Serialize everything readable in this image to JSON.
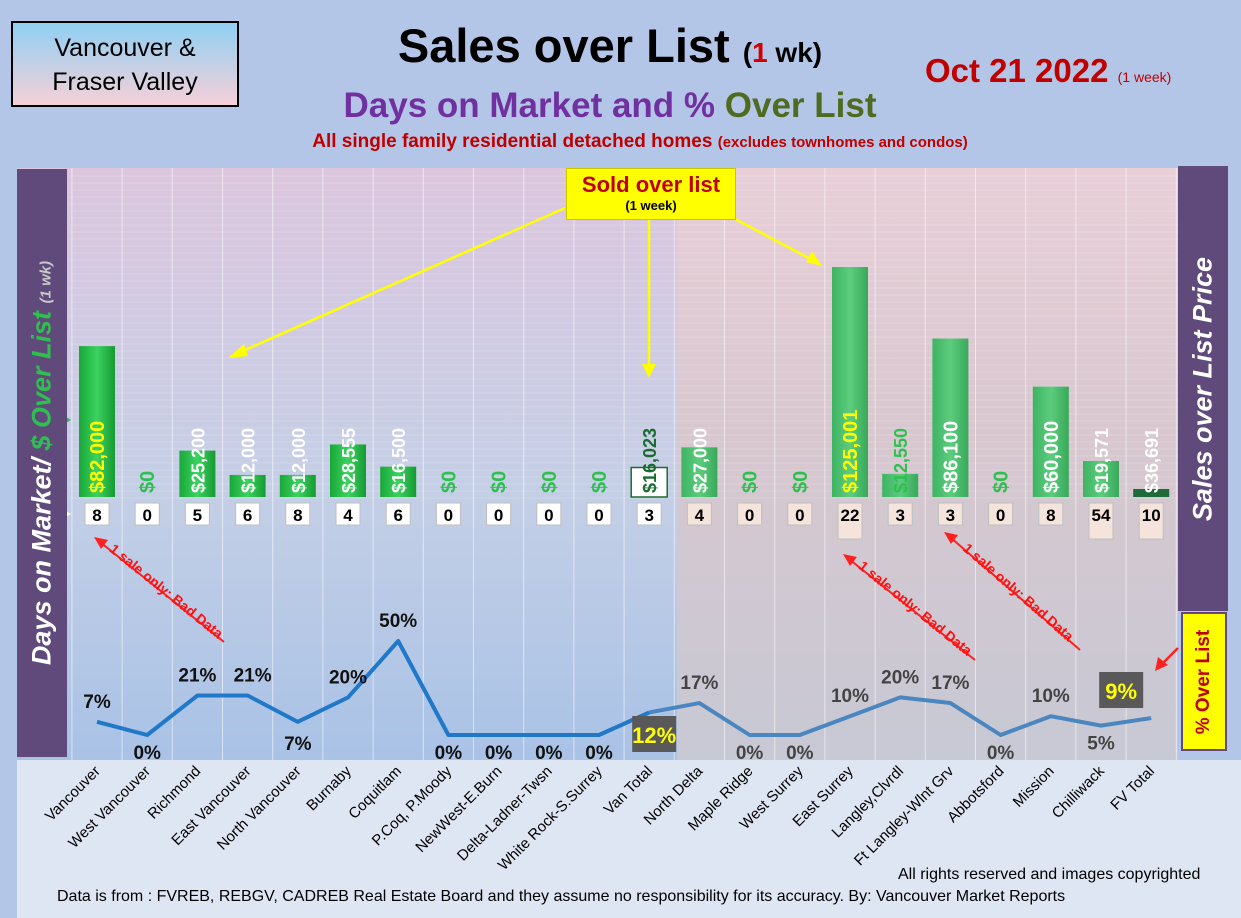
{
  "region": {
    "line1": "Vancouver &",
    "line2": "Fraser Valley"
  },
  "title": {
    "main": "Sales over List",
    "paren_open": "(",
    "weeks": "1",
    "unit": "wk)"
  },
  "date": {
    "main": "Oct 21  2022",
    "note": "(1 week)"
  },
  "subtitle": {
    "part1": "Days on Market and % ",
    "part2": "Over List"
  },
  "description": {
    "main": "All single family residential detached homes ",
    "note": "(excludes townhomes and condos)"
  },
  "left_axis": {
    "part1": "Days on Market/ ",
    "part2": "$ Over List",
    "part3": "(1 wk)"
  },
  "right_axis": {
    "label": "Sales over List Price"
  },
  "pct_box": {
    "label": "% Over List"
  },
  "callout": {
    "title": "Sold over list",
    "note": "(1 week)"
  },
  "annotations": {
    "bad_data": "1 sale only: Bad Data"
  },
  "footer": {
    "rights": "All rights reserved and  images copyrighted",
    "data": "Data is from : FVREB, REBGV, CADREB Real Estate Board and they assume no responsibility for its accuracy. By: Vancouver Market Reports"
  },
  "colors": {
    "bar": "#2fbf4f",
    "line_van": "#1f78c8",
    "line_fv": "#4a86c0",
    "title_red": "#c00000",
    "purple": "#604a7b"
  },
  "chart_data": {
    "type": "bar",
    "categories": [
      "Vancouver",
      "West Vancouver",
      "Richmond",
      "East Vancouver",
      "North Vancouver",
      "Burnaby",
      "Coquitlam",
      "P.Coq, P.Moody",
      "NewWest-E.Burn",
      "Delta-Ladner-Twsn",
      "White Rock-S.Surrey",
      "Van Total",
      "North Delta",
      "Maple Ridge",
      "West Surrey",
      "East Surrey",
      "Langley,Clvrdl",
      "Ft Langley-Wlnt Grv",
      "Abbotsford",
      "Mission",
      "Chilliwack",
      "FV Total"
    ],
    "series": [
      {
        "name": "$ Over List",
        "values": [
          82000,
          0,
          25200,
          12000,
          12000,
          28555,
          16500,
          0,
          0,
          0,
          0,
          16023,
          27000,
          0,
          0,
          125001,
          12550,
          86100,
          0,
          60000,
          19571,
          36691
        ],
        "labels": [
          "$82,000",
          "$0",
          "$25,200",
          "$12,000",
          "$12,000",
          "$28,555",
          "$16,500",
          "$0",
          "$0",
          "$0",
          "$0",
          "$16,023",
          "$27,000",
          "$0",
          "$0",
          "$125,001",
          "$12,550",
          "$86,100",
          "$0",
          "$60,000",
          "$19,571",
          "$36,691"
        ]
      },
      {
        "name": "Days on Market",
        "values": [
          8,
          0,
          5,
          6,
          8,
          4,
          6,
          0,
          0,
          0,
          0,
          3,
          4,
          0,
          0,
          22,
          3,
          3,
          0,
          8,
          54,
          10
        ]
      },
      {
        "name": "% Over List",
        "values": [
          7,
          0,
          21,
          21,
          7,
          20,
          50,
          0,
          0,
          0,
          0,
          12,
          17,
          0,
          0,
          10,
          20,
          17,
          0,
          10,
          5,
          9
        ],
        "labels": [
          "7%",
          "0%",
          "21%",
          "21%",
          "7%",
          "20%",
          "50%",
          "0%",
          "0%",
          "0%",
          "0%",
          "12%",
          "17%",
          "0%",
          "0%",
          "10%",
          "20%",
          "17%",
          "0%",
          "10%",
          "5%",
          "9%"
        ]
      }
    ],
    "ylim_dollars": [
      0,
      125001
    ],
    "ylim_percent": [
      0,
      50
    ]
  }
}
